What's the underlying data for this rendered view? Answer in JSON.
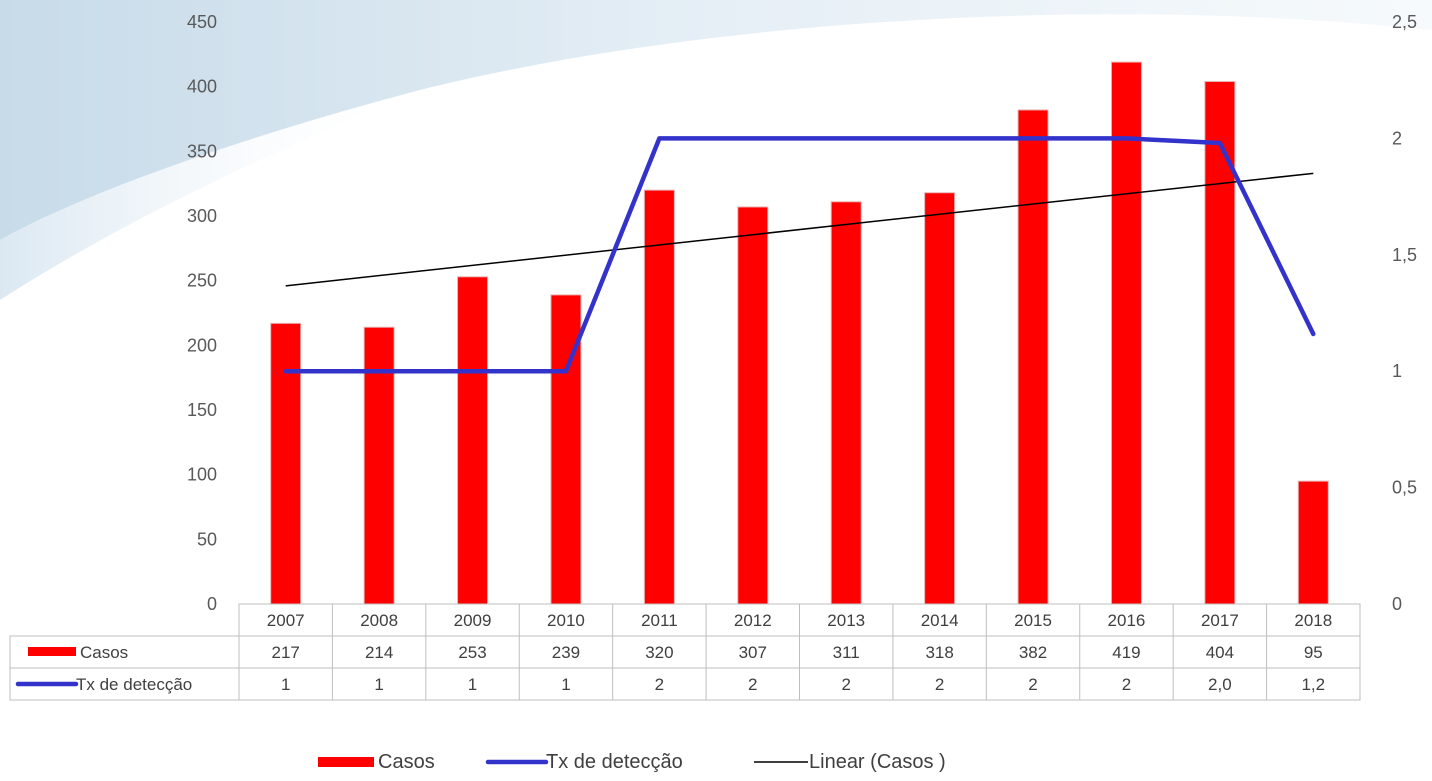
{
  "chart_data": {
    "type": "bar+line",
    "categories": [
      "2007",
      "2008",
      "2009",
      "2010",
      "2011",
      "2012",
      "2013",
      "2014",
      "2015",
      "2016",
      "2017",
      "2018"
    ],
    "series": [
      {
        "name": "Casos",
        "kind": "bar",
        "axis": "left",
        "color": "#ff0000",
        "values": [
          217,
          214,
          253,
          239,
          320,
          307,
          311,
          318,
          382,
          419,
          404,
          95
        ],
        "table_labels": [
          "217",
          "214",
          "253",
          "239",
          "320",
          "307",
          "311",
          "318",
          "382",
          "419",
          "404",
          "95"
        ]
      },
      {
        "name": "Tx de detecção",
        "kind": "line",
        "axis": "right",
        "color": "#3333cc",
        "values": [
          1,
          1,
          1,
          1,
          2,
          2,
          2,
          2,
          2,
          2,
          1.98,
          1.16
        ],
        "table_labels": [
          "1",
          "1",
          "1",
          "1",
          "2",
          "2",
          "2",
          "2",
          "2",
          "2",
          "2,0",
          "1,2"
        ]
      },
      {
        "name": "Linear (Casos )",
        "kind": "trendline",
        "axis": "left",
        "color": "#000000",
        "values": [
          246,
          254,
          262,
          270,
          277,
          285,
          293,
          301,
          309,
          317,
          325,
          333
        ]
      }
    ],
    "y_left": {
      "ylim": [
        0,
        450
      ],
      "ticks": [
        "0",
        "50",
        "100",
        "150",
        "200",
        "250",
        "300",
        "350",
        "400",
        "450"
      ]
    },
    "y_right": {
      "ylim": [
        0,
        2.5
      ],
      "ticks": [
        "0",
        "0,5",
        "1",
        "1,5",
        "2",
        "2,5"
      ]
    },
    "legend_position": "bottom",
    "data_table": true,
    "grid": false
  }
}
